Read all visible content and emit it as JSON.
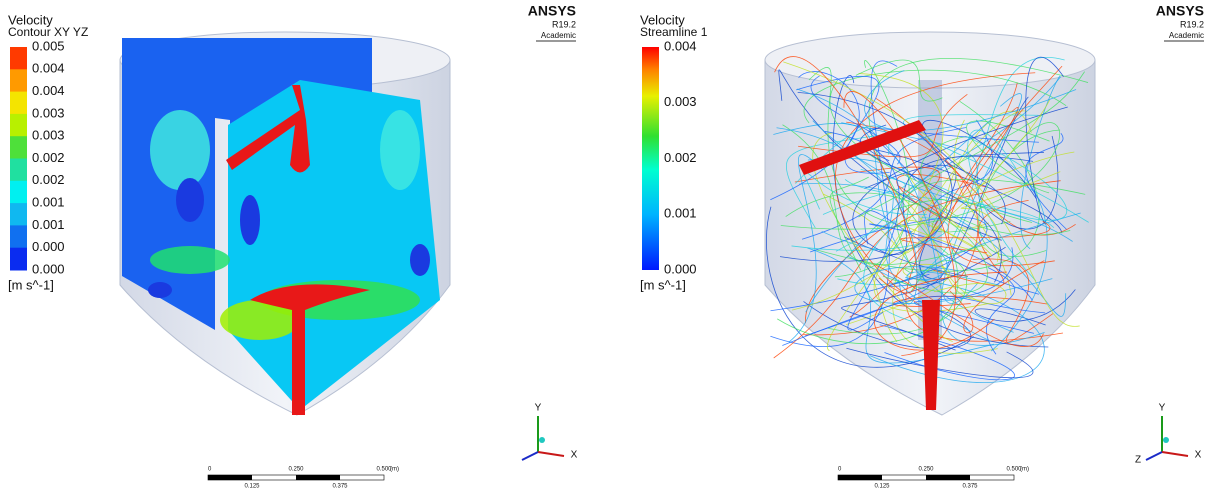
{
  "panels": [
    {
      "legend": {
        "title": "Velocity",
        "subtitle": "Contour XY YZ",
        "labels": [
          "0.005",
          "0.004",
          "0.004",
          "0.003",
          "0.003",
          "0.002",
          "0.002",
          "0.001",
          "0.001",
          "0.000",
          "0.000"
        ],
        "unit": "[m s^-1]"
      },
      "logo": {
        "name": "ANSYS",
        "version": "R19.2",
        "license": "Academic"
      },
      "scale_bar": {
        "top": [
          "0",
          "0.250",
          "0.500"
        ],
        "unit": "(m)",
        "bottom": [
          "0.125",
          "0.375"
        ]
      },
      "axes": [
        "Y",
        "X"
      ]
    },
    {
      "legend": {
        "title": "Velocity",
        "subtitle": "Streamline 1",
        "labels": [
          "0.004",
          "0.003",
          "0.002",
          "0.001",
          "0.000"
        ],
        "unit": "[m s^-1]"
      },
      "logo": {
        "name": "ANSYS",
        "version": "R19.2",
        "license": "Academic"
      },
      "scale_bar": {
        "top": [
          "0",
          "0.250",
          "0.500"
        ],
        "unit": "(m)",
        "bottom": [
          "0.125",
          "0.375"
        ]
      },
      "axes": [
        "Y",
        "X",
        "Z"
      ]
    }
  ]
}
